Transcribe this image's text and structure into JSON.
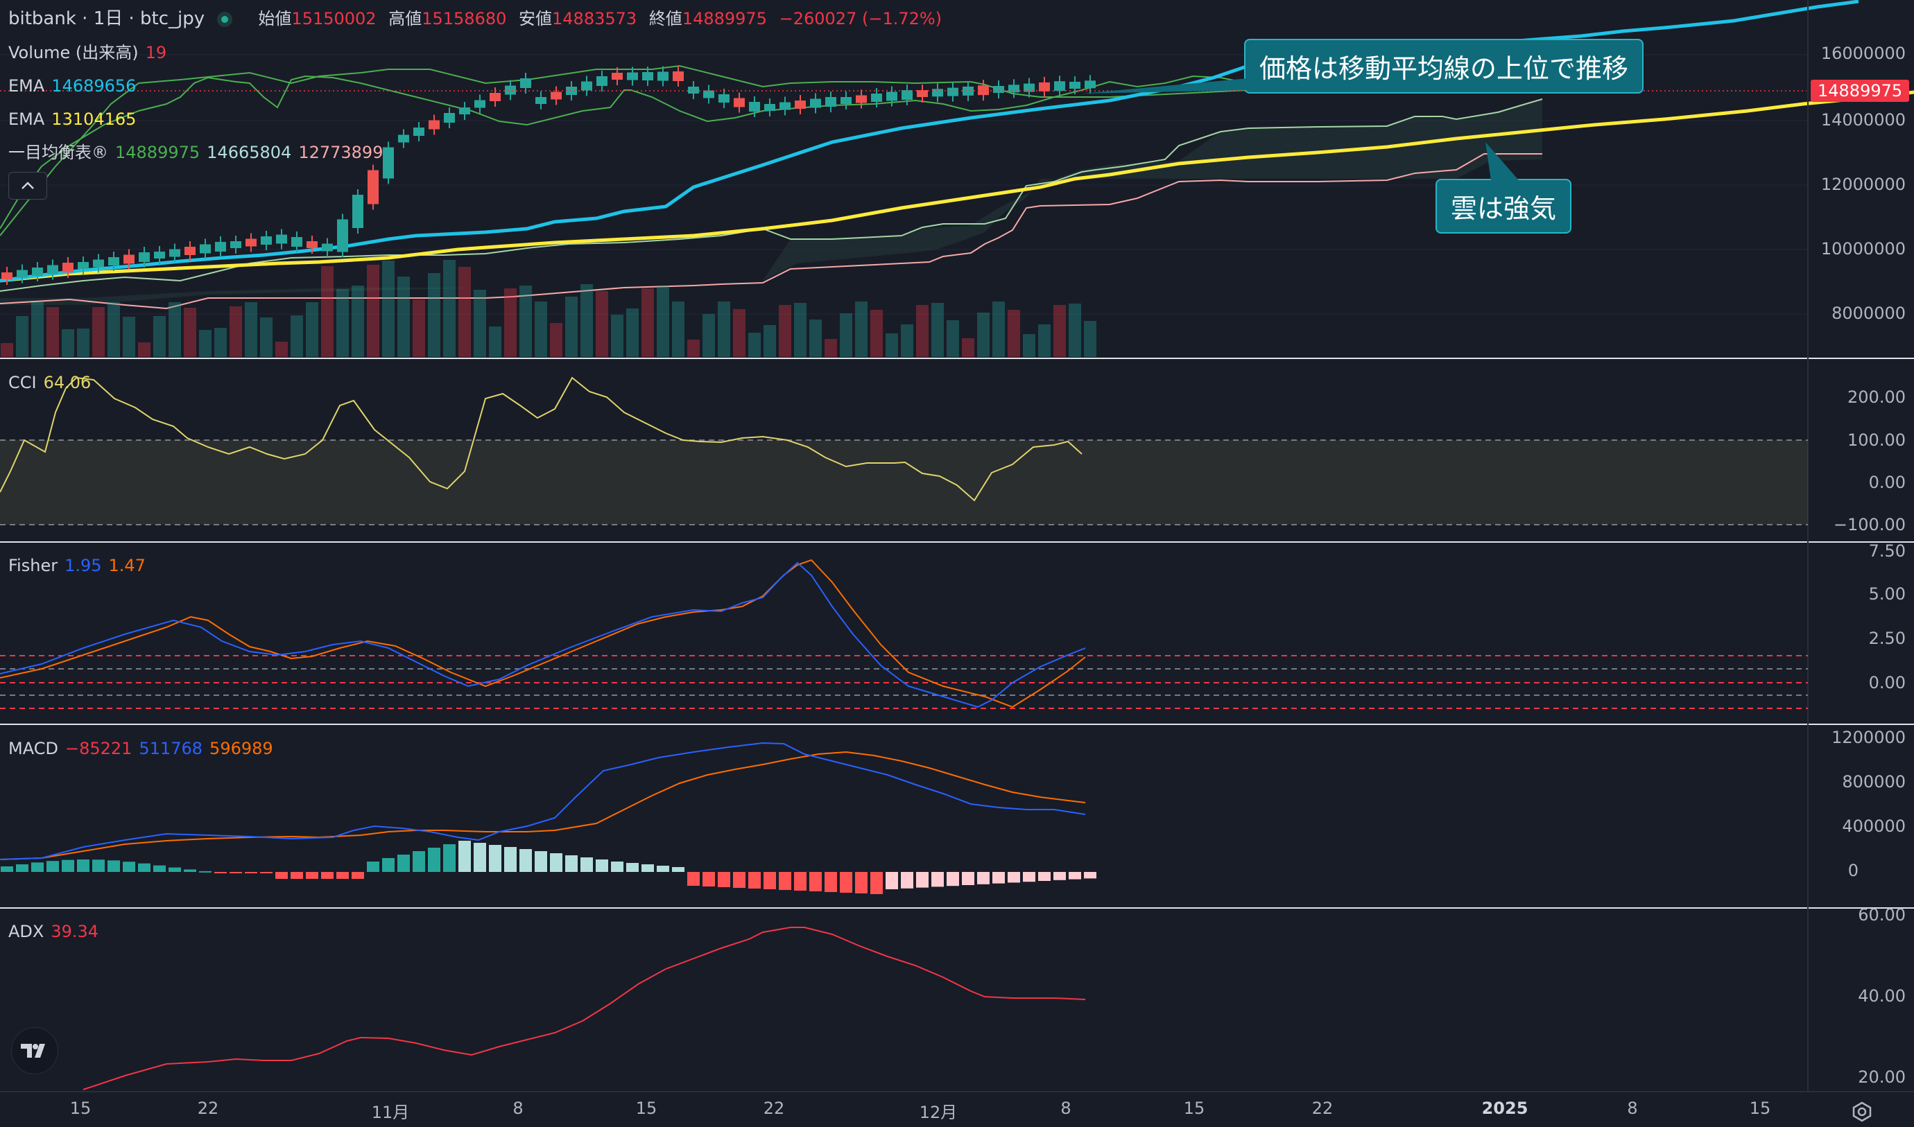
{
  "header": {
    "symbol": "bitbank · 1日 · btc_jpy",
    "open_label": "始値",
    "open": "15150002",
    "high_label": "高値",
    "high": "15158680",
    "low_label": "安値",
    "low": "14883573",
    "close_label": "終値",
    "close": "14889975",
    "change": "−260027 (−1.72%)"
  },
  "legend": {
    "volume_label": "Volume (出来高)",
    "volume_value": "19",
    "ema1_label": "EMA",
    "ema1_value": "14689656",
    "ema2_label": "EMA",
    "ema2_value": "13104165",
    "ichimoku_label": "一目均衡表®",
    "ichimoku_v1": "14889975",
    "ichimoku_v2": "14665804",
    "ichimoku_v3": "12773899",
    "collapse_icon": "chevron-up-icon"
  },
  "price_axis": [
    "16000000",
    "14000000",
    "12000000",
    "10000000",
    "8000000"
  ],
  "last_price_tag": "14889975",
  "cci": {
    "label": "CCI",
    "value": "64.06",
    "axis": [
      "200.00",
      "100.00",
      "0.00",
      "−100.00"
    ]
  },
  "fisher": {
    "label": "Fisher",
    "v1": "1.95",
    "v2": "1.47",
    "axis": [
      "7.50",
      "5.00",
      "2.50",
      "0.00"
    ]
  },
  "macd": {
    "label": "MACD",
    "hist": "−85221",
    "macd": "511768",
    "signal": "596989",
    "axis": [
      "1200000",
      "800000",
      "400000",
      "0"
    ]
  },
  "adx": {
    "label": "ADX",
    "value": "39.34",
    "axis": [
      "60.00",
      "40.00",
      "20.00"
    ]
  },
  "time_axis": [
    "15",
    "22",
    "11月",
    "8",
    "15",
    "22",
    "12月",
    "8",
    "15",
    "22",
    "2025",
    "8",
    "15"
  ],
  "callouts": {
    "ema": "価格は移動平均線の上位で推移",
    "cloud": "雲は強気"
  },
  "colors": {
    "up": "#26a69a",
    "down": "#ef5350",
    "ema_fast": "#1fc2e6",
    "ema_slow": "#ffeb3b",
    "background": "#181c27",
    "cci": "#e0d46a",
    "fisher_main": "#2962ff",
    "fisher_trigger": "#ff6d00",
    "adx": "#f23645"
  },
  "icons": {
    "logo": "tradingview-logo-icon",
    "settings": "gear-icon",
    "status": "market-status-dot-icon"
  }
}
